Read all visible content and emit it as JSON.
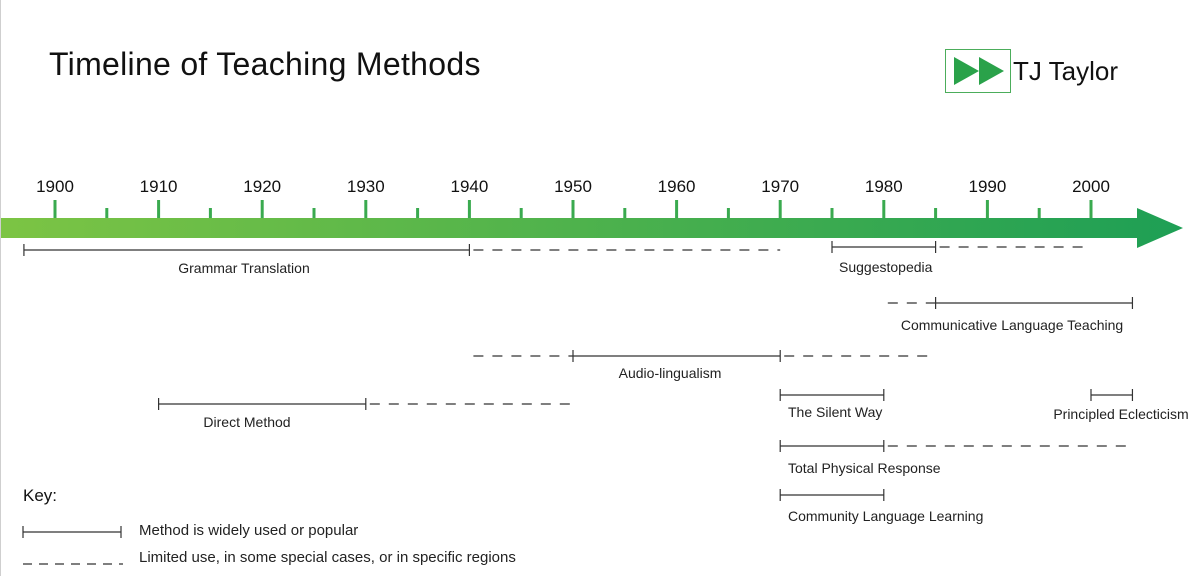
{
  "header": {
    "title": "Timeline of Teaching Methods",
    "logo_text": "TJ Taylor",
    "logo_icon": "fast-forward-icon",
    "accent_color": "#2aa24a"
  },
  "axis": {
    "years": [
      "1900",
      "1910",
      "1920",
      "1930",
      "1940",
      "1950",
      "1960",
      "1970",
      "1980",
      "1990",
      "2000"
    ],
    "start_year": 1900,
    "end_year": 2000,
    "minor_tick_step_years": 5,
    "gradient_colors": [
      "#7cc444",
      "#1e9f55"
    ]
  },
  "methods": [
    {
      "name": "Grammar Translation",
      "segments": [
        {
          "from": 1897,
          "to": 1940,
          "style": "solid"
        },
        {
          "from": 1940,
          "to": 1970,
          "style": "dashed"
        }
      ]
    },
    {
      "name": "Suggestopedia",
      "segments": [
        {
          "from": 1975,
          "to": 1985,
          "style": "solid"
        },
        {
          "from": 1985,
          "to": 2000,
          "style": "dashed"
        }
      ]
    },
    {
      "name": "Communicative Language Teaching",
      "segments": [
        {
          "from": 1980,
          "to": 1985,
          "style": "dashed"
        },
        {
          "from": 1985,
          "to": 2004,
          "style": "solid"
        }
      ]
    },
    {
      "name": "Audio-lingualism",
      "segments": [
        {
          "from": 1940,
          "to": 1950,
          "style": "dashed"
        },
        {
          "from": 1950,
          "to": 1970,
          "style": "solid"
        },
        {
          "from": 1970,
          "to": 1985,
          "style": "dashed"
        }
      ]
    },
    {
      "name": "Direct Method",
      "segments": [
        {
          "from": 1910,
          "to": 1930,
          "style": "solid"
        },
        {
          "from": 1930,
          "to": 1950,
          "style": "dashed"
        }
      ]
    },
    {
      "name": "The Silent Way",
      "segments": [
        {
          "from": 1970,
          "to": 1980,
          "style": "solid"
        }
      ]
    },
    {
      "name": "Principled Eclecticism",
      "segments": [
        {
          "from": 2000,
          "to": 2004,
          "style": "solid"
        }
      ]
    },
    {
      "name": "Total Physical Response",
      "segments": [
        {
          "from": 1970,
          "to": 1980,
          "style": "solid"
        },
        {
          "from": 1980,
          "to": 2004,
          "style": "dashed"
        }
      ]
    },
    {
      "name": "Community Language Learning",
      "segments": [
        {
          "from": 1970,
          "to": 1980,
          "style": "solid"
        }
      ]
    }
  ],
  "key": {
    "title": "Key:",
    "solid_label": "Method is widely used or popular",
    "dashed_label": "Limited use, in some special cases, or in specific regions"
  }
}
